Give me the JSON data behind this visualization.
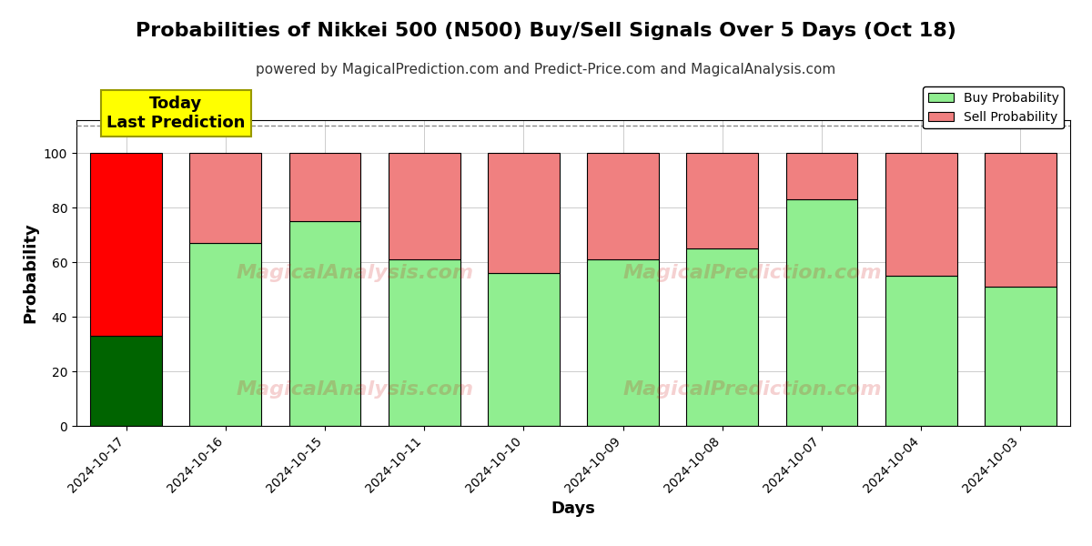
{
  "title": "Probabilities of Nikkei 500 (N500) Buy/Sell Signals Over 5 Days (Oct 18)",
  "subtitle": "powered by MagicalPrediction.com and Predict-Price.com and MagicalAnalysis.com",
  "xlabel": "Days",
  "ylabel": "Probability",
  "dates": [
    "2024-10-17",
    "2024-10-16",
    "2024-10-15",
    "2024-10-11",
    "2024-10-10",
    "2024-10-09",
    "2024-10-08",
    "2024-10-07",
    "2024-10-04",
    "2024-10-03"
  ],
  "buy_values": [
    33,
    67,
    75,
    61,
    56,
    61,
    65,
    83,
    55,
    51
  ],
  "sell_values": [
    67,
    33,
    25,
    39,
    44,
    39,
    35,
    17,
    45,
    49
  ],
  "today_buy_color": "#006400",
  "today_sell_color": "#FF0000",
  "buy_color": "#90EE90",
  "sell_color": "#F08080",
  "bar_edge_color": "black",
  "bar_linewidth": 0.8,
  "today_annotation_bg": "#FFFF00",
  "today_annotation_text": "Today\nLast Prediction",
  "ylim": [
    0,
    112
  ],
  "yticks": [
    0,
    20,
    40,
    60,
    80,
    100
  ],
  "dashed_line_y": 110,
  "legend_buy_label": "Buy Probability",
  "legend_sell_label": "Sell Probability",
  "bg_color": "#FFFFFF",
  "grid_color": "#AAAAAA",
  "title_fontsize": 16,
  "subtitle_fontsize": 11,
  "label_fontsize": 13,
  "tick_fontsize": 10
}
